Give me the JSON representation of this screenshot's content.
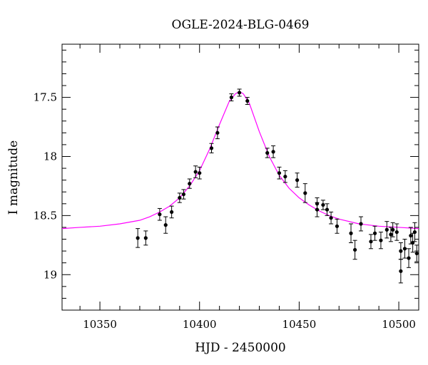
{
  "chart_data": {
    "type": "scatter",
    "title": "OGLE-2024-BLG-0469",
    "xlabel": "HJD - 2450000",
    "ylabel": "I magnitude",
    "xlim": [
      10331,
      10510
    ],
    "ylim": [
      19.3,
      17.05
    ],
    "y_inverted": true,
    "xticks": [
      10350,
      10400,
      10450,
      10500
    ],
    "yticks": [
      17.5,
      18,
      18.5,
      19
    ],
    "xtick_labels": [
      "10350",
      "10400",
      "10450",
      "10500"
    ],
    "ytick_labels": [
      "17.5",
      "18",
      "18.5",
      "19"
    ],
    "grid": false,
    "colors": {
      "points": "#000000",
      "model": "#ff00ff",
      "axes": "#000000"
    },
    "series": [
      {
        "kind": "points_with_errorbars",
        "x": [
          10369,
          10373,
          10380,
          10383,
          10386,
          10390,
          10392,
          10395,
          10398,
          10400,
          10406,
          10409,
          10416,
          10420,
          10424,
          10434,
          10437,
          10440,
          10443,
          10449,
          10453,
          10459,
          10459,
          10462,
          10464,
          10466,
          10469,
          10476,
          10478,
          10481,
          10486,
          10488,
          10491,
          10494,
          10496,
          10497,
          10499,
          10501,
          10501,
          10503,
          10505,
          10506,
          10507,
          10508,
          10509
        ],
        "y": [
          18.69,
          18.69,
          18.49,
          18.58,
          18.47,
          18.35,
          18.32,
          18.23,
          18.13,
          18.14,
          17.93,
          17.8,
          17.5,
          17.46,
          17.53,
          17.97,
          17.96,
          18.14,
          18.17,
          18.2,
          18.31,
          18.4,
          18.45,
          18.41,
          18.45,
          18.52,
          18.59,
          18.65,
          18.79,
          18.57,
          18.72,
          18.65,
          18.71,
          18.62,
          18.66,
          18.62,
          18.64,
          18.97,
          18.8,
          18.78,
          18.86,
          18.67,
          18.73,
          18.64,
          18.82
        ],
        "err": [
          0.08,
          0.06,
          0.05,
          0.07,
          0.05,
          0.04,
          0.04,
          0.04,
          0.05,
          0.05,
          0.04,
          0.05,
          0.03,
          0.03,
          0.03,
          0.04,
          0.05,
          0.05,
          0.05,
          0.06,
          0.08,
          0.05,
          0.06,
          0.04,
          0.05,
          0.05,
          0.06,
          0.08,
          0.08,
          0.06,
          0.06,
          0.06,
          0.07,
          0.07,
          0.06,
          0.06,
          0.07,
          0.1,
          0.07,
          0.08,
          0.08,
          0.07,
          0.08,
          0.08,
          0.07
        ]
      },
      {
        "kind": "model_curve",
        "x": [
          10331,
          10340,
          10350,
          10360,
          10370,
          10375,
          10380,
          10385,
          10390,
          10395,
          10400,
          10405,
          10410,
          10415,
          10418,
          10420,
          10422,
          10425,
          10430,
          10435,
          10440,
          10445,
          10450,
          10455,
          10460,
          10465,
          10470,
          10480,
          10490,
          10500,
          10510
        ],
        "y": [
          18.61,
          18.6,
          18.59,
          18.57,
          18.54,
          18.51,
          18.47,
          18.42,
          18.35,
          18.25,
          18.12,
          17.94,
          17.73,
          17.53,
          17.47,
          17.45,
          17.47,
          17.55,
          17.79,
          18.0,
          18.16,
          18.27,
          18.35,
          18.41,
          18.46,
          18.5,
          18.53,
          18.57,
          18.59,
          18.6,
          18.61
        ]
      }
    ]
  }
}
